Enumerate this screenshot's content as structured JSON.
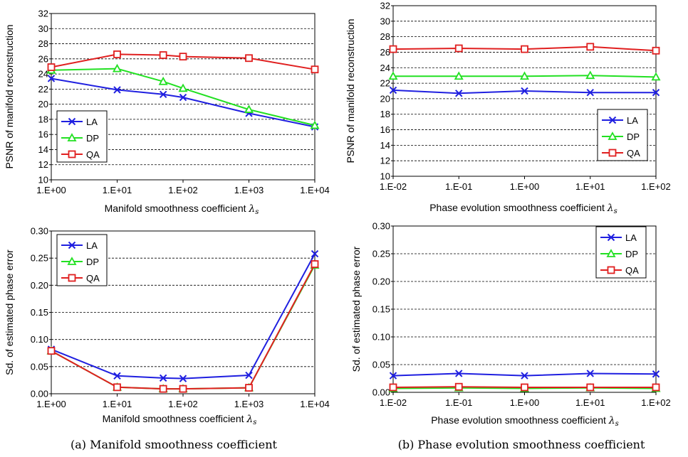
{
  "captions": [
    "(a) Manifold smoothness coefficient",
    "(b) Phase evolution smoothness coefficient"
  ],
  "colors": {
    "LA": "#1f1fe0",
    "DP": "#22e022",
    "QA": "#e01f1f"
  },
  "chart_data": [
    {
      "type": "line",
      "panel": "top-left",
      "xlabel": "Manifold smoothness coefficient",
      "xlabel_symbol": "λs",
      "ylabel": "PSNR of manifold reconstruction",
      "x_scale": "log",
      "xlim": [
        1,
        10000
      ],
      "x_ticks": [
        1,
        10,
        100,
        1000,
        10000
      ],
      "x_tick_labels": [
        "1.E+00",
        "1.E+01",
        "1.E+02",
        "1.E+03",
        "1.E+04"
      ],
      "ylim": [
        10,
        32
      ],
      "y_ticks": [
        10,
        12,
        14,
        16,
        18,
        20,
        22,
        24,
        26,
        28,
        30,
        32
      ],
      "y_tick_labels": [
        "10",
        "12",
        "14",
        "16",
        "18",
        "20",
        "22",
        "24",
        "26",
        "28",
        "30",
        "32"
      ],
      "grid": "horizontal dashed",
      "legend_position": "lower-left",
      "x": [
        1,
        10,
        50,
        100,
        1000,
        10000
      ],
      "series": [
        {
          "name": "LA",
          "marker": "x",
          "values": [
            23.4,
            21.9,
            21.3,
            20.9,
            18.8,
            17.0
          ]
        },
        {
          "name": "DP",
          "marker": "triangle",
          "values": [
            24.5,
            24.7,
            23.0,
            22.1,
            19.3,
            17.2
          ]
        },
        {
          "name": "QA",
          "marker": "square",
          "values": [
            24.9,
            26.6,
            26.5,
            26.3,
            26.1,
            24.6
          ]
        }
      ]
    },
    {
      "type": "line",
      "panel": "top-right",
      "xlabel": "Phase evolution smoothness coefficient",
      "xlabel_symbol": "λs",
      "ylabel": "PSNR of manifold reconstruction",
      "x_scale": "log",
      "xlim": [
        0.01,
        100
      ],
      "x_ticks": [
        0.01,
        0.1,
        1,
        10,
        100
      ],
      "x_tick_labels": [
        "1.E-02",
        "1.E-01",
        "1.E+00",
        "1.E+01",
        "1.E+02"
      ],
      "ylim": [
        10,
        32
      ],
      "y_ticks": [
        10,
        12,
        14,
        16,
        18,
        20,
        22,
        24,
        26,
        28,
        30,
        32
      ],
      "y_tick_labels": [
        "10",
        "12",
        "14",
        "16",
        "18",
        "20",
        "22",
        "24",
        "26",
        "28",
        "30",
        "32"
      ],
      "grid": "horizontal dashed",
      "legend_position": "lower-right",
      "x": [
        0.01,
        0.1,
        1,
        10,
        100
      ],
      "series": [
        {
          "name": "LA",
          "marker": "x",
          "values": [
            21.1,
            20.7,
            21.0,
            20.8,
            20.8
          ]
        },
        {
          "name": "DP",
          "marker": "triangle",
          "values": [
            22.9,
            22.9,
            22.9,
            23.0,
            22.8
          ]
        },
        {
          "name": "QA",
          "marker": "square",
          "values": [
            26.4,
            26.5,
            26.4,
            26.7,
            26.2
          ]
        }
      ]
    },
    {
      "type": "line",
      "panel": "bottom-left",
      "xlabel": "Manifold smoothness coefficient",
      "xlabel_symbol": "λs",
      "ylabel": "Sd. of estimated phase error",
      "x_scale": "log",
      "xlim": [
        1,
        10000
      ],
      "x_ticks": [
        1,
        10,
        100,
        1000,
        10000
      ],
      "x_tick_labels": [
        "1.E+00",
        "1.E+01",
        "1.E+02",
        "1.E+03",
        "1.E+04"
      ],
      "ylim": [
        0,
        0.3
      ],
      "y_ticks": [
        0,
        0.05,
        0.1,
        0.15,
        0.2,
        0.25,
        0.3
      ],
      "y_tick_labels": [
        "0.00",
        "0.05",
        "0.10",
        "0.15",
        "0.20",
        "0.25",
        "0.30"
      ],
      "grid": "horizontal dashed",
      "legend_position": "upper-left",
      "x": [
        1,
        10,
        50,
        100,
        1000,
        10000
      ],
      "series": [
        {
          "name": "LA",
          "marker": "x",
          "values": [
            0.082,
            0.033,
            0.029,
            0.028,
            0.034,
            0.258
          ]
        },
        {
          "name": "DP",
          "marker": "triangle",
          "values": [
            0.079,
            0.012,
            0.009,
            0.009,
            0.011,
            0.237
          ]
        },
        {
          "name": "QA",
          "marker": "square",
          "values": [
            0.079,
            0.012,
            0.009,
            0.009,
            0.011,
            0.239
          ]
        }
      ]
    },
    {
      "type": "line",
      "panel": "bottom-right",
      "xlabel": "Phase evolution smoothness coefficient",
      "xlabel_symbol": "λs",
      "ylabel": "Sd. of estimated phase error",
      "x_scale": "log",
      "xlim": [
        0.01,
        100
      ],
      "x_ticks": [
        0.01,
        0.1,
        1,
        10,
        100
      ],
      "x_tick_labels": [
        "1.E-02",
        "1.E-01",
        "1.E+00",
        "1.E+01",
        "1.E+02"
      ],
      "ylim": [
        0,
        0.3
      ],
      "y_ticks": [
        0,
        0.05,
        0.1,
        0.15,
        0.2,
        0.25,
        0.3
      ],
      "y_tick_labels": [
        "0.00",
        "0.05",
        "0.10",
        "0.15",
        "0.20",
        "0.25",
        "0.30"
      ],
      "grid": "horizontal dashed",
      "legend_position": "upper-right",
      "x": [
        0.01,
        0.1,
        1,
        10,
        100
      ],
      "series": [
        {
          "name": "LA",
          "marker": "x",
          "values": [
            0.03,
            0.034,
            0.03,
            0.034,
            0.033
          ]
        },
        {
          "name": "DP",
          "marker": "triangle",
          "values": [
            0.007,
            0.008,
            0.007,
            0.008,
            0.007
          ]
        },
        {
          "name": "QA",
          "marker": "square",
          "values": [
            0.009,
            0.01,
            0.009,
            0.009,
            0.009
          ]
        }
      ]
    }
  ]
}
